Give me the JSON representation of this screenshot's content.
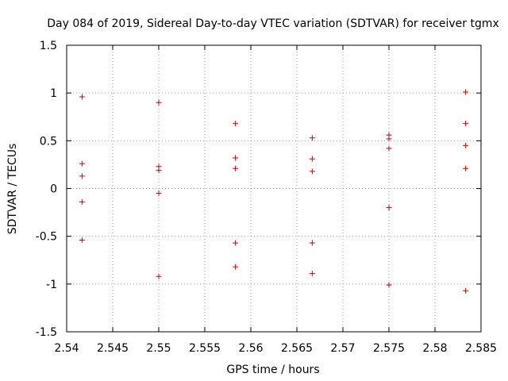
{
  "chart_data": {
    "type": "scatter",
    "title": "Day 084 of 2019, Sidereal Day-to-day VTEC variation (SDTVAR) for receiver tgmx",
    "xlabel": "GPS time / hours",
    "ylabel": "SDTVAR / TECUs",
    "xlim": [
      2.54,
      2.585
    ],
    "ylim": [
      -1.5,
      1.5
    ],
    "x_ticks": [
      "2.54",
      "2.545",
      "2.55",
      "2.555",
      "2.56",
      "2.565",
      "2.57",
      "2.575",
      "2.58",
      "2.585"
    ],
    "y_ticks": [
      "1.5",
      "1",
      "0.5",
      "0",
      "-0.5",
      "-1",
      "-1.5"
    ],
    "grid": true,
    "marker": "+",
    "marker_color": "#cc0000",
    "series": [
      {
        "name": "SDTVAR",
        "points": [
          [
            2.54167,
            0.96
          ],
          [
            2.54167,
            0.26
          ],
          [
            2.54167,
            0.13
          ],
          [
            2.54167,
            -0.14
          ],
          [
            2.54167,
            -0.54
          ],
          [
            2.55,
            0.9
          ],
          [
            2.55,
            0.23
          ],
          [
            2.55,
            0.19
          ],
          [
            2.55,
            -0.05
          ],
          [
            2.55,
            -0.92
          ],
          [
            2.55833,
            0.68
          ],
          [
            2.55833,
            0.32
          ],
          [
            2.55833,
            0.21
          ],
          [
            2.55833,
            -0.57
          ],
          [
            2.55833,
            -0.82
          ],
          [
            2.56667,
            0.53
          ],
          [
            2.56667,
            0.31
          ],
          [
            2.56667,
            0.18
          ],
          [
            2.56667,
            -0.57
          ],
          [
            2.56667,
            -0.89
          ],
          [
            2.575,
            0.56
          ],
          [
            2.575,
            0.52
          ],
          [
            2.575,
            0.42
          ],
          [
            2.575,
            -0.2
          ],
          [
            2.575,
            -1.01
          ],
          [
            2.58333,
            1.01
          ],
          [
            2.58333,
            0.68
          ],
          [
            2.58333,
            0.45
          ],
          [
            2.58333,
            0.21
          ],
          [
            2.58333,
            -1.07
          ]
        ]
      }
    ]
  }
}
